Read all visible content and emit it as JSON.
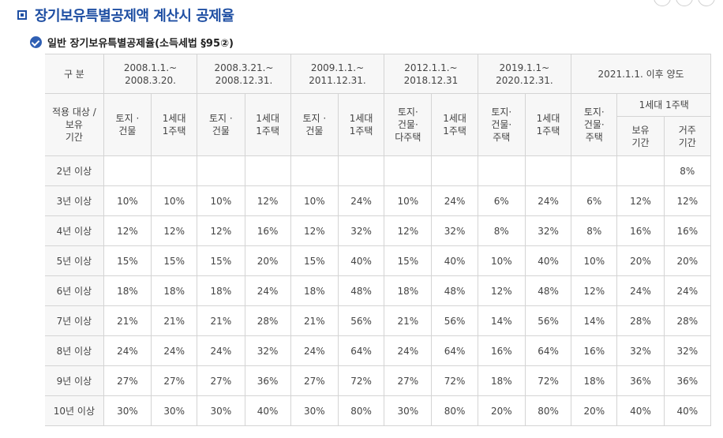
{
  "title": "장기보유특별공제액 계산시 공제율",
  "subtitle": "일반 장기보유특별공제율(소득세법 §95②)",
  "table": {
    "period_header": "구 분",
    "periods": [
      "2008.1.1.~\n2008.3.20.",
      "2008.3.21.~\n2008.12.31.",
      "2009.1.1.~\n2011.12.31.",
      "2012.1.1.~\n2018.12.31",
      "2019.1.1~\n2020.12.31.",
      "2021.1.1. 이후 양도"
    ],
    "target_header": "적용 대상 /\n보유\n기간",
    "subcols": [
      "토지 ·\n건물",
      "1세대\n1주택",
      "토지 ·\n건물",
      "1세대\n1주택",
      "토지 ·\n건물",
      "1세대\n1주택",
      "토지·\n건물·\n다주택",
      "1세대\n1주택",
      "토지·\n건물·\n주택",
      "1세대\n1주택",
      "토지·\n건물·\n주택"
    ],
    "one_house_header": "1세대 1주택",
    "one_house_sub": [
      "보유\n기간",
      "거주\n기간"
    ],
    "rows": [
      {
        "label": "2년 이상",
        "values": [
          "",
          "",
          "",
          "",
          "",
          "",
          "",
          "",
          "",
          "",
          "",
          "",
          "8%"
        ]
      },
      {
        "label": "3년 이상",
        "values": [
          "10%",
          "10%",
          "10%",
          "12%",
          "10%",
          "24%",
          "10%",
          "24%",
          "6%",
          "24%",
          "6%",
          "12%",
          "12%"
        ]
      },
      {
        "label": "4년 이상",
        "values": [
          "12%",
          "12%",
          "12%",
          "16%",
          "12%",
          "32%",
          "12%",
          "32%",
          "8%",
          "32%",
          "8%",
          "16%",
          "16%"
        ]
      },
      {
        "label": "5년 이상",
        "values": [
          "15%",
          "15%",
          "15%",
          "20%",
          "15%",
          "40%",
          "15%",
          "40%",
          "10%",
          "40%",
          "10%",
          "20%",
          "20%"
        ]
      },
      {
        "label": "6년 이상",
        "values": [
          "18%",
          "18%",
          "18%",
          "24%",
          "18%",
          "48%",
          "18%",
          "48%",
          "12%",
          "48%",
          "12%",
          "24%",
          "24%"
        ]
      },
      {
        "label": "7년 이상",
        "values": [
          "21%",
          "21%",
          "21%",
          "28%",
          "21%",
          "56%",
          "21%",
          "56%",
          "14%",
          "56%",
          "14%",
          "28%",
          "28%"
        ]
      },
      {
        "label": "8년 이상",
        "values": [
          "24%",
          "24%",
          "24%",
          "32%",
          "24%",
          "64%",
          "24%",
          "64%",
          "16%",
          "64%",
          "16%",
          "32%",
          "32%"
        ]
      },
      {
        "label": "9년 이상",
        "values": [
          "27%",
          "27%",
          "27%",
          "36%",
          "27%",
          "72%",
          "27%",
          "72%",
          "18%",
          "72%",
          "18%",
          "36%",
          "36%"
        ]
      },
      {
        "label": "10년 이상",
        "values": [
          "30%",
          "30%",
          "30%",
          "40%",
          "30%",
          "80%",
          "30%",
          "80%",
          "20%",
          "80%",
          "20%",
          "40%",
          "40%"
        ]
      }
    ]
  }
}
